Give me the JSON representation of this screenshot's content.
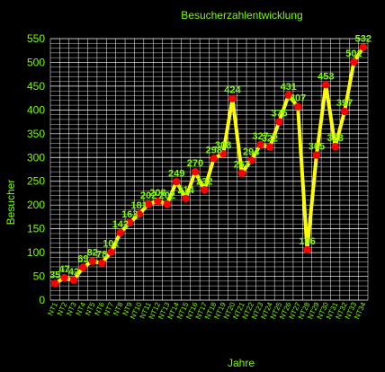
{
  "colors": {
    "background": "#000000",
    "text": "#7CFC00",
    "grid": "#FFFFFF",
    "line": "#FFFF00",
    "marker": "#FF0000"
  },
  "chart_data": {
    "type": "line",
    "title": "Besucherzahlentwicklung",
    "xlabel": "Jahre",
    "ylabel": "Besucher",
    "ylim": [
      0,
      550
    ],
    "yticks": [
      0,
      50,
      100,
      150,
      200,
      250,
      300,
      350,
      400,
      450,
      500,
      550
    ],
    "grid": true,
    "categories": [
      "NT1",
      "NT2",
      "NT3",
      "NT4",
      "NT5",
      "NT6",
      "NT7",
      "NT8",
      "NT9",
      "NT10",
      "NT11",
      "NT12",
      "NT13",
      "NT14",
      "NT15",
      "NT16",
      "NT17",
      "NT18",
      "NT19",
      "NT20",
      "NT21",
      "NT22",
      "NT23",
      "NT24",
      "NT25",
      "NT26",
      "NT27",
      "NT28",
      "NT29",
      "NT30",
      "NT31",
      "NT32",
      "NT33",
      "NT34"
    ],
    "series": [
      {
        "values": [
          35,
          47,
          42,
          69,
          82,
          78,
          101,
          142,
          163,
          181,
          202,
          208,
          202,
          249,
          214,
          270,
          232,
          298,
          308,
          424,
          267,
          294,
          327,
          322,
          375,
          431,
          407,
          106,
          305,
          453,
          323,
          397,
          501,
          532
        ]
      }
    ]
  }
}
